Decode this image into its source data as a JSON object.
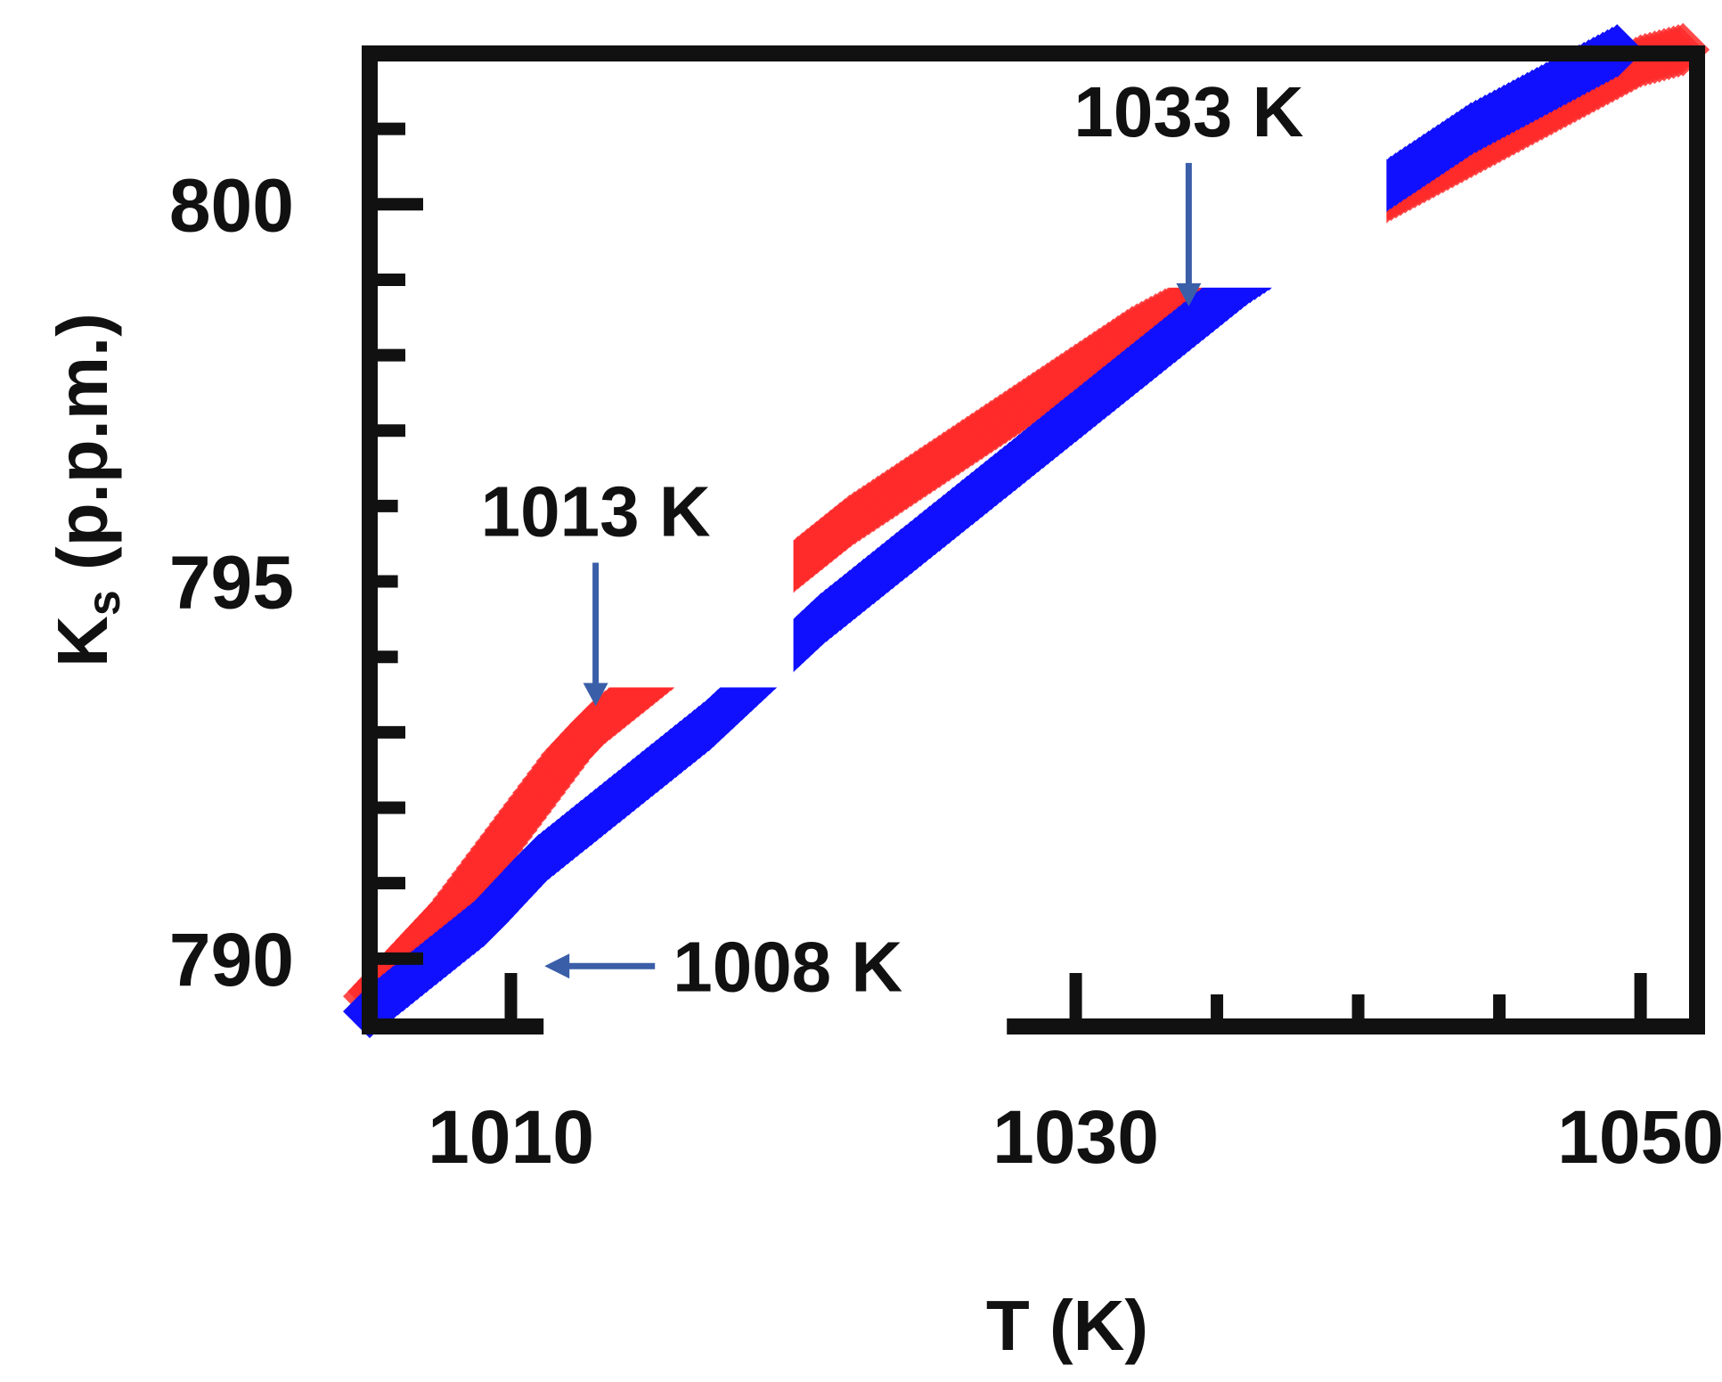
{
  "chart_data": {
    "type": "scatter",
    "xlabel": "T (K)",
    "ylabel_main": "K",
    "ylabel_sub": "s",
    "ylabel_rest": " (p.p.m.)",
    "xlim": [
      1005,
      1052
    ],
    "ylim": [
      789.1,
      802.0
    ],
    "x_ticks": [
      1010,
      1030,
      1050
    ],
    "y_ticks": [
      790,
      795,
      800
    ],
    "grid": false,
    "series": [
      {
        "color": "#ff2a2a",
        "x": [
          1005,
          1006,
          1007,
          1008,
          1009,
          1010,
          1011,
          1012,
          1013,
          1014,
          1015,
          1016,
          1017,
          1018,
          1019,
          1020,
          1021,
          1022,
          1023,
          1024,
          1025,
          1026,
          1027,
          1028,
          1029,
          1030,
          1031,
          1032,
          1033,
          1034,
          1035,
          1036,
          1037,
          1038,
          1039,
          1040,
          1041,
          1042,
          1043,
          1044,
          1045,
          1046,
          1047,
          1048,
          1049,
          1050,
          1051,
          1052
        ],
        "y": [
          789.5,
          789.9,
          790.3,
          790.7,
          791.2,
          791.7,
          792.2,
          792.7,
          793.1,
          793.4,
          793.7,
          794.0,
          794.3,
          794.6,
          794.9,
          795.2,
          795.5,
          795.8,
          796.05,
          796.3,
          796.55,
          796.8,
          797.05,
          797.3,
          797.55,
          797.8,
          798.05,
          798.3,
          798.5,
          798.7,
          798.9,
          799.1,
          799.3,
          799.5,
          799.7,
          799.9,
          800.1,
          800.3,
          800.5,
          800.7,
          800.9,
          801.1,
          801.3,
          801.5,
          801.7,
          801.9,
          802.0,
          802.1
        ]
      },
      {
        "color": "#1010ff",
        "x": [
          1005,
          1006,
          1007,
          1008,
          1009,
          1010,
          1011,
          1012,
          1013,
          1014,
          1015,
          1016,
          1017,
          1018,
          1019,
          1020,
          1021,
          1022,
          1023,
          1024,
          1025,
          1026,
          1027,
          1028,
          1029,
          1030,
          1031,
          1032,
          1033,
          1034,
          1035,
          1036,
          1037,
          1038,
          1039,
          1040,
          1041,
          1042,
          1043,
          1044,
          1045,
          1046,
          1047,
          1048,
          1049,
          1050,
          1051,
          1052
        ],
        "y": [
          789.3,
          789.6,
          789.9,
          790.2,
          790.5,
          790.9,
          791.3,
          791.6,
          791.9,
          792.2,
          792.5,
          792.8,
          793.1,
          793.45,
          793.8,
          794.15,
          794.5,
          794.8,
          795.1,
          795.4,
          795.7,
          796.0,
          796.3,
          796.6,
          796.9,
          797.2,
          797.5,
          797.8,
          798.1,
          798.4,
          798.7,
          799.0,
          799.25,
          799.5,
          799.75,
          800.0,
          800.25,
          800.5,
          800.75,
          801.0,
          801.2,
          801.4,
          801.6,
          801.8,
          802.0,
          802.2,
          802.35,
          802.5
        ]
      }
    ],
    "annotations": [
      {
        "text": "1033  K",
        "x": 1034,
        "y": 798.6,
        "arrow": "down"
      },
      {
        "text": "1013 K",
        "x": 1013,
        "y": 793.3,
        "arrow": "down"
      },
      {
        "text": "1008 K",
        "x": 1011,
        "y": 789.9,
        "arrow": "left"
      }
    ],
    "colors": {
      "frame": "#111111",
      "arrow": "#3a5ea8"
    }
  }
}
